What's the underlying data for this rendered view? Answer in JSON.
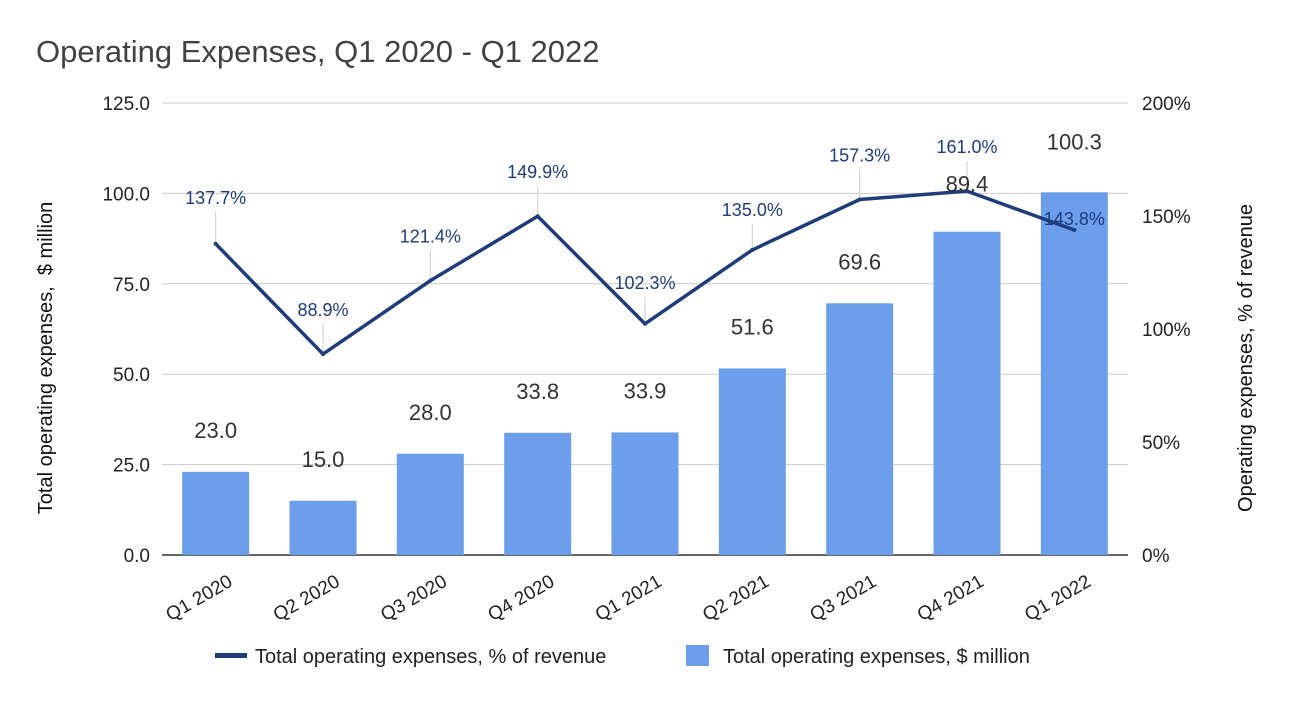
{
  "chart_data": {
    "type": "bar",
    "title": "Operating Expenses, Q1 2020 - Q1 2022",
    "categories": [
      "Q1 2020",
      "Q2 2020",
      "Q3 2020",
      "Q4 2020",
      "Q1 2021",
      "Q2 2021",
      "Q3 2021",
      "Q4 2021",
      "Q1 2022"
    ],
    "series": [
      {
        "name": "Total operating expenses, $ million",
        "type": "bar",
        "axis": "left",
        "color": "#6d9eeb",
        "values": [
          23.0,
          15.0,
          28.0,
          33.8,
          33.9,
          51.6,
          69.6,
          89.4,
          100.3
        ],
        "labels": [
          "23.0",
          "15.0",
          "28.0",
          "33.8",
          "33.9",
          "51.6",
          "69.6",
          "89.4",
          "100.3"
        ]
      },
      {
        "name": "Total operating expenses, % of revenue",
        "type": "line",
        "axis": "right",
        "color": "#1f3d7a",
        "values": [
          137.7,
          88.9,
          121.4,
          149.9,
          102.3,
          135.0,
          157.3,
          161.0,
          143.8
        ],
        "labels": [
          "137.7%",
          "88.9%",
          "121.4%",
          "149.9%",
          "102.3%",
          "135.0%",
          "157.3%",
          "161.0%",
          "143.8%"
        ]
      }
    ],
    "ylabel": "Total operating expenses,  $ million",
    "y2label": "Operating expenses, % of revenue",
    "xlabel": "",
    "ylim": [
      0,
      125
    ],
    "y2lim": [
      0,
      200
    ],
    "yticks": [
      "0.0",
      "25.0",
      "50.0",
      "75.0",
      "100.0",
      "125.0"
    ],
    "y2ticks": [
      "0%",
      "50%",
      "100%",
      "150%",
      "200%"
    ],
    "grid": true,
    "legend_position": "bottom"
  }
}
